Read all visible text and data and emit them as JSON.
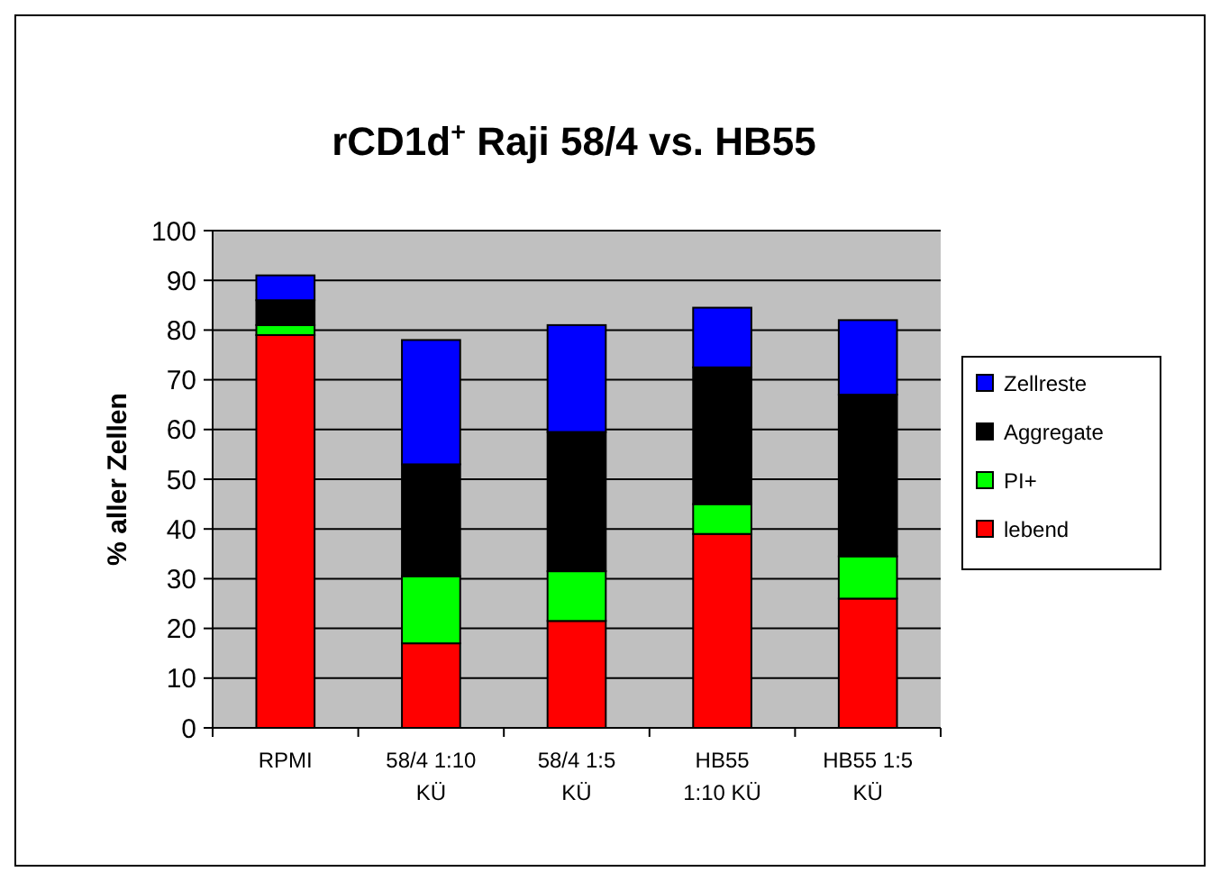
{
  "chart_data": {
    "type": "bar",
    "title": "rCD1d$^{+}$ Raji    58/4 vs. HB55",
    "ylabel": "% aller Zellen",
    "categories": [
      "RPMI",
      "58/4 1:10\nKÜ",
      "58/4  1:5\nKÜ",
      "HB55\n1:10 KÜ",
      "HB55 1:5\nKÜ"
    ],
    "stacked": true,
    "series": [
      {
        "name": "lebend",
        "color": "#ff0000",
        "values": [
          79,
          17,
          21.5,
          39,
          26
        ]
      },
      {
        "name": "PI+",
        "color": "#00ff00",
        "values": [
          2,
          13.5,
          10,
          6,
          8.5
        ]
      },
      {
        "name": "Aggregate",
        "color": "#000000",
        "values": [
          5,
          22.5,
          28,
          27.5,
          32.5
        ]
      },
      {
        "name": "Zellreste",
        "color": "#0000ff",
        "values": [
          5,
          25,
          21.5,
          12,
          15
        ]
      }
    ],
    "ylim": [
      0,
      100
    ],
    "yticks": [
      0,
      10,
      20,
      30,
      40,
      50,
      60,
      70,
      80,
      90,
      100
    ],
    "grid": "y",
    "legend": "right"
  }
}
